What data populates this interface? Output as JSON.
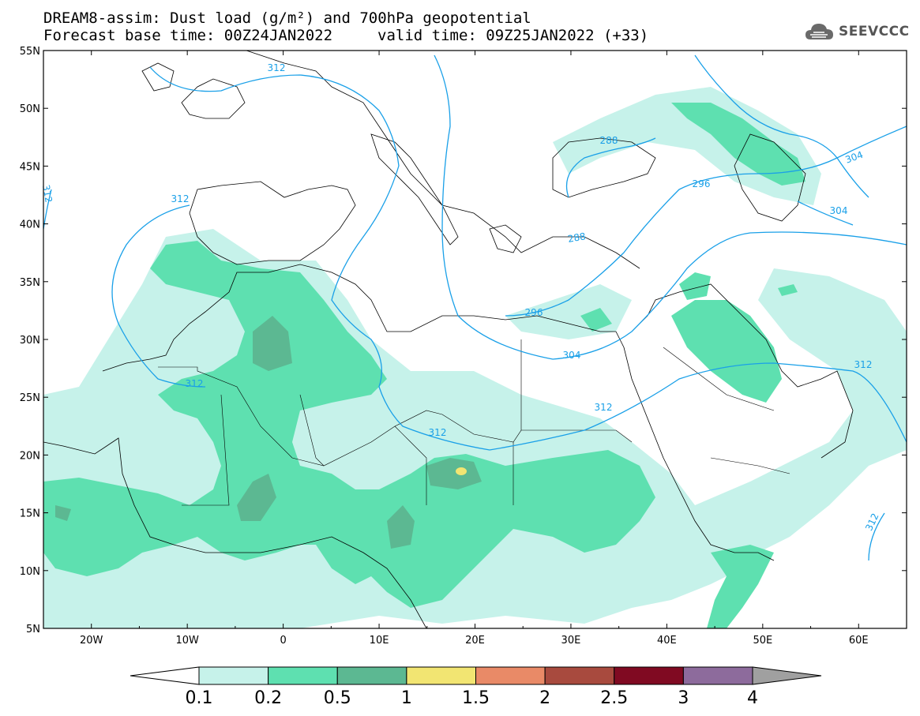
{
  "header": {
    "title_line1": "DREAM8-assim: Dust load (g/m²) and 700hPa geopotential",
    "title_line2": "Forecast base time: 00Z24JAN2022",
    "valid_time": "valid time: 09Z25JAN2022 (+33)",
    "logo_text": "SEEVCCC"
  },
  "axes": {
    "lat_labels": [
      "55N",
      "50N",
      "45N",
      "40N",
      "35N",
      "30N",
      "25N",
      "20N",
      "15N",
      "10N",
      "5N"
    ],
    "lon_labels": [
      "20W",
      "10W",
      "0",
      "10E",
      "20E",
      "30E",
      "40E",
      "50E",
      "60E"
    ],
    "lat_values": [
      55,
      50,
      45,
      40,
      35,
      30,
      25,
      20,
      15,
      10,
      5
    ],
    "lon_values": [
      -20,
      -10,
      0,
      10,
      20,
      30,
      40,
      50,
      60
    ],
    "lon_range": [
      -25,
      65
    ],
    "lat_range": [
      5,
      55
    ]
  },
  "contours": {
    "color": "#1aa0e8",
    "labels": [
      "312",
      "312",
      "312",
      "312",
      "312",
      "312",
      "312",
      "304",
      "304",
      "304",
      "296",
      "296",
      "288",
      "288",
      "312"
    ]
  },
  "colorbar": {
    "labels": [
      "0.1",
      "0.2",
      "0.5",
      "1",
      "1.5",
      "2",
      "2.5",
      "3",
      "4"
    ],
    "colors": [
      "#ffffff",
      "#c6f2ea",
      "#5ee0b0",
      "#5cb892",
      "#f2e572",
      "#e98a67",
      "#a84a3e",
      "#800a22",
      "#8d6b9c",
      "#a0a0a0"
    ]
  },
  "dust_colors": {
    "light": "#c6f2ea",
    "medium": "#5ee0b0",
    "dark": "#5cb892",
    "yellow": "#f2e572"
  }
}
